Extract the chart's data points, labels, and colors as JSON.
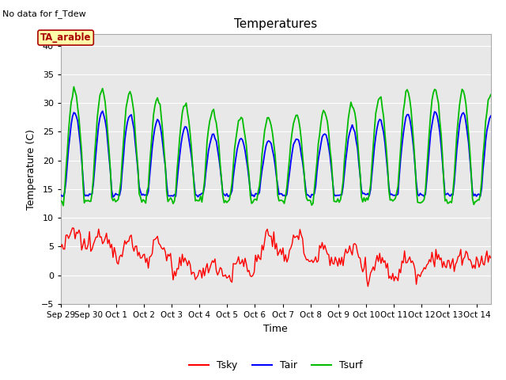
{
  "title": "Temperatures",
  "ylabel": "Temperature (C)",
  "xlabel": "Time",
  "top_left_text": "No data for f_Tdew",
  "annotation_box": "TA_arable",
  "ylim": [
    -5,
    42
  ],
  "xlim_start": 0,
  "xlim_end": 15.5,
  "xtick_labels": [
    "Sep 29",
    "Sep 30",
    "Oct 1",
    "Oct 2",
    "Oct 3",
    "Oct 4",
    "Oct 5",
    "Oct 6",
    "Oct 7",
    "Oct 8",
    "Oct 9",
    "Oct 10",
    "Oct 11",
    "Oct 12",
    "Oct 13",
    "Oct 14"
  ],
  "xtick_positions": [
    0,
    1,
    2,
    3,
    4,
    5,
    6,
    7,
    8,
    9,
    10,
    11,
    12,
    13,
    14,
    15
  ],
  "yticks": [
    -5,
    0,
    5,
    10,
    15,
    20,
    25,
    30,
    35,
    40
  ],
  "colors": {
    "Tsky": "#FF0000",
    "Tair": "#0000FF",
    "Tsurf": "#00BB00",
    "background": "#FFFFFF",
    "plot_bg": "#E8E8E8",
    "grid": "#FFFFFF",
    "annotation_border": "#AA0000",
    "annotation_bg": "#FFFFAA"
  },
  "legend": [
    {
      "label": "Tsky",
      "color": "#FF0000"
    },
    {
      "label": "Tair",
      "color": "#0000FF"
    },
    {
      "label": "Tsurf",
      "color": "#00BB00"
    }
  ],
  "n_points": 330,
  "day_start": 0,
  "day_end": 15.5
}
